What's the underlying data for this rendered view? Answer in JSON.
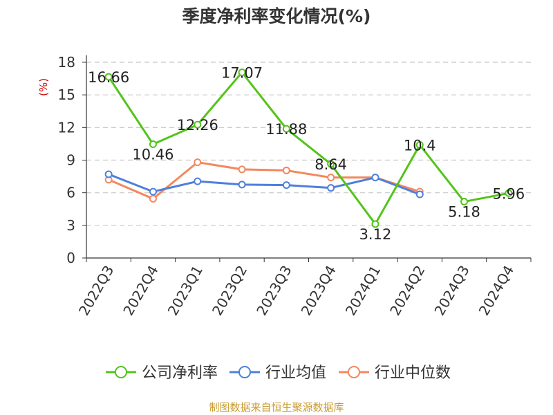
{
  "chart_data": {
    "type": "line",
    "title": "季度净利率变化情况(%)",
    "ylabel": "(%)",
    "xlabel": "",
    "categories": [
      "2022Q3",
      "2022Q4",
      "2023Q1",
      "2023Q2",
      "2023Q3",
      "2023Q4",
      "2024Q1",
      "2024Q2",
      "2024Q3",
      "2024Q4"
    ],
    "ylim": [
      0,
      18
    ],
    "yticks": [
      0,
      3,
      6,
      9,
      12,
      15,
      18
    ],
    "grid": true,
    "legend_position": "bottom",
    "series": [
      {
        "name": "公司净利率",
        "color": "#52c41a",
        "show_labels": true,
        "values": [
          16.66,
          10.46,
          12.26,
          17.07,
          11.88,
          8.64,
          3.12,
          10.4,
          5.18,
          5.96
        ]
      },
      {
        "name": "行业均值",
        "color": "#4e7fdb",
        "show_labels": false,
        "values": [
          7.7,
          6.1,
          7.05,
          6.75,
          6.7,
          6.45,
          7.4,
          5.85,
          null,
          null
        ]
      },
      {
        "name": "行业中位数",
        "color": "#f5875e",
        "show_labels": false,
        "values": [
          7.2,
          5.45,
          8.8,
          8.15,
          8.05,
          7.4,
          7.4,
          6.1,
          null,
          null
        ]
      }
    ]
  },
  "footer": {
    "source": "制图数据来自恒生聚源数据库",
    "source_color": "#c79a2e"
  }
}
